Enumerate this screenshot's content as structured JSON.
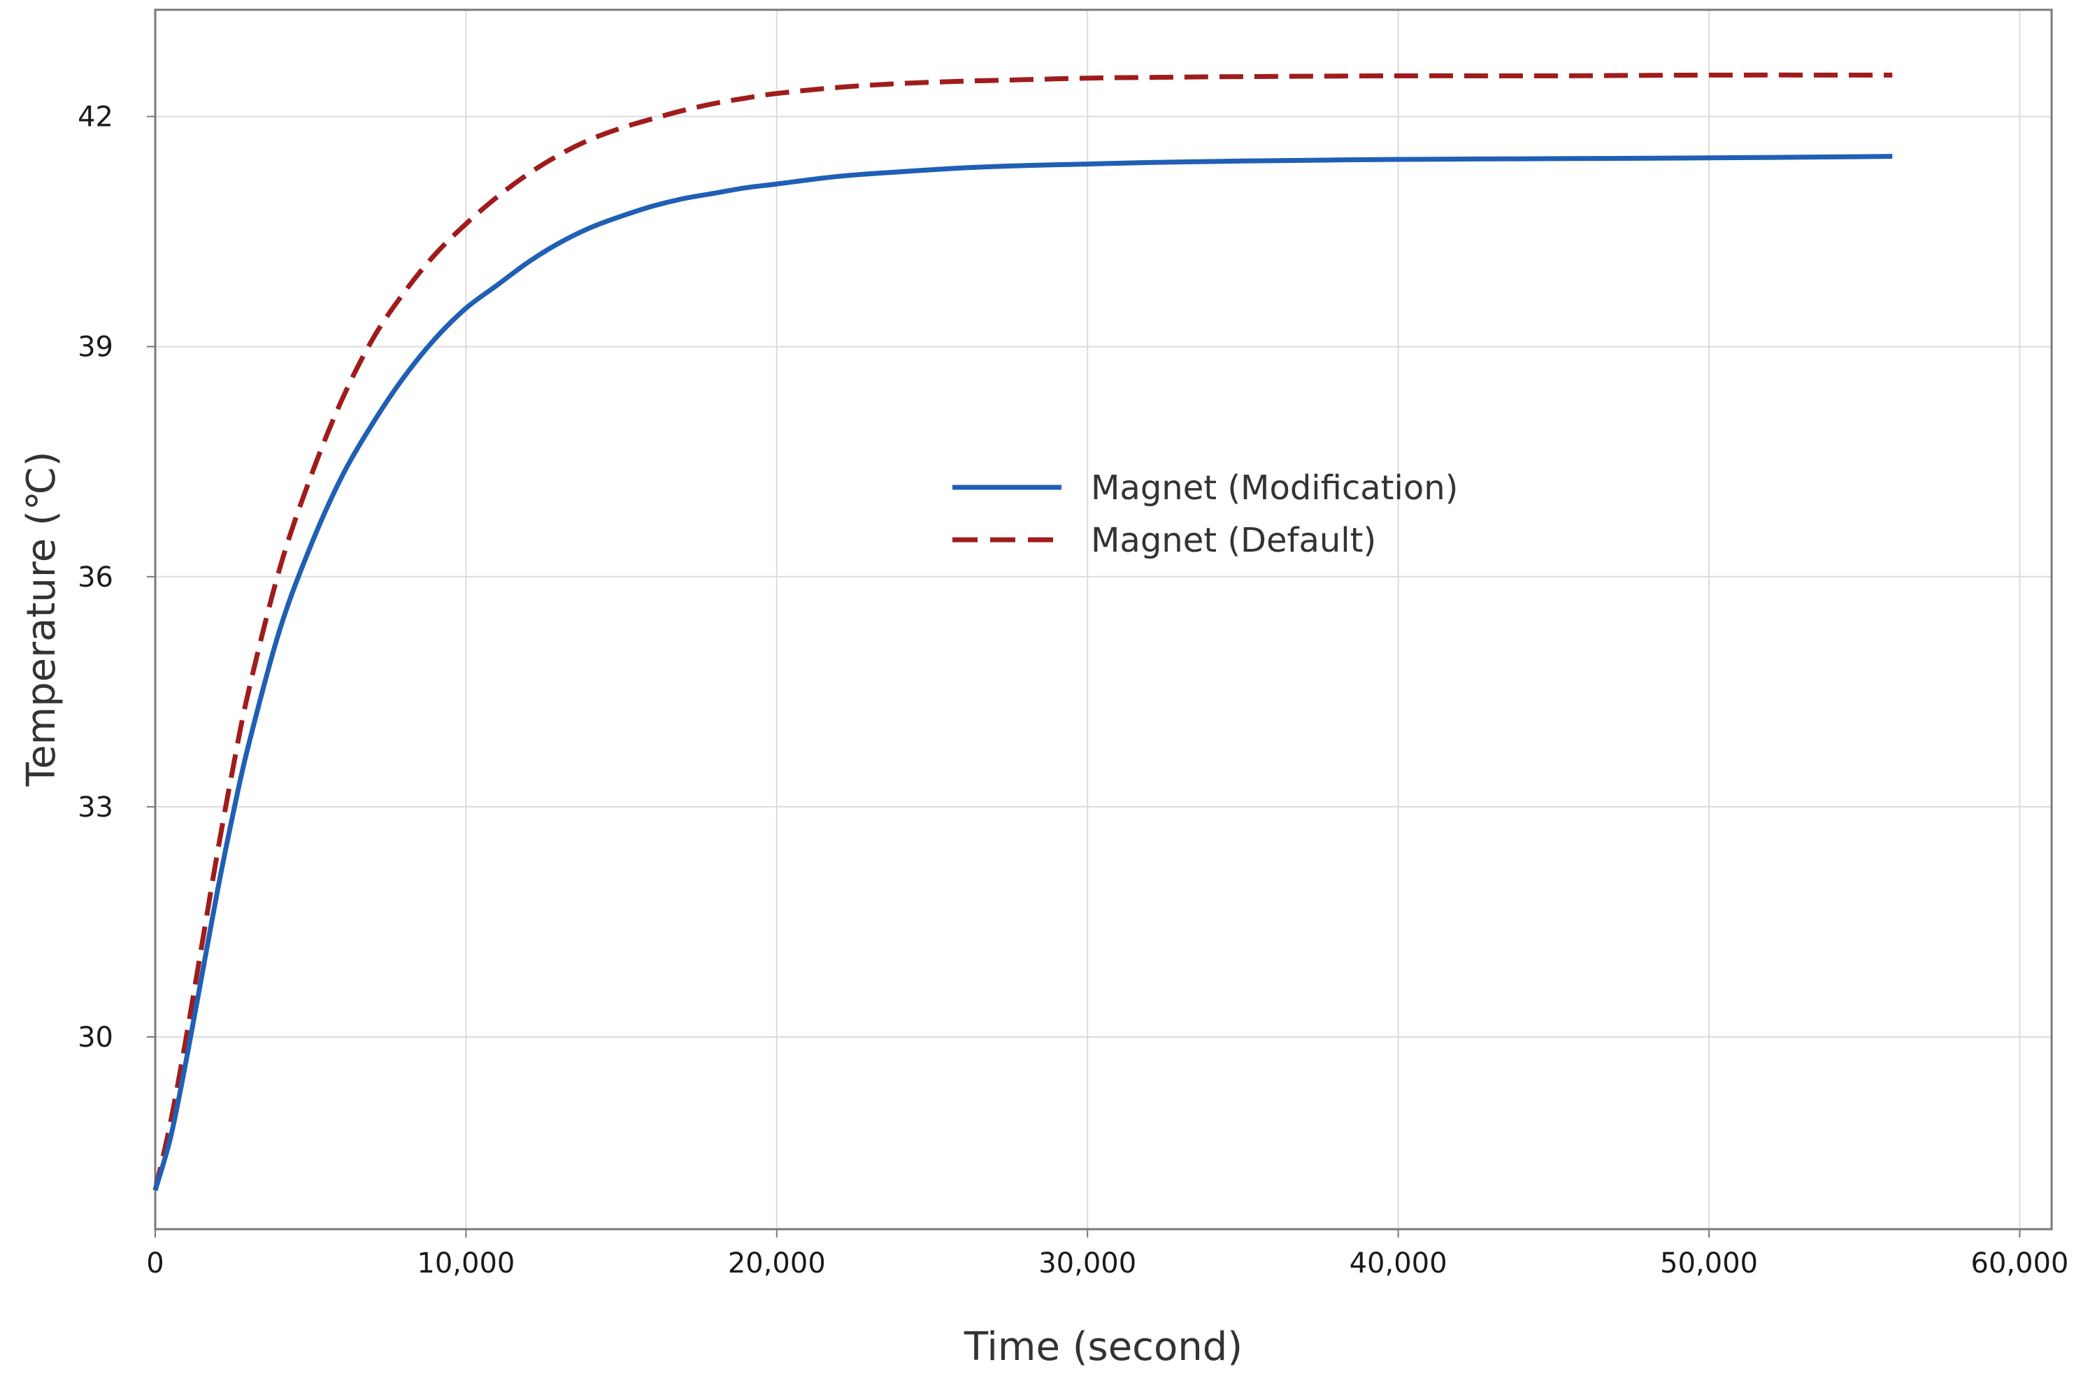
{
  "chart_data": {
    "type": "line",
    "title": "",
    "xlabel": "Time (second)",
    "ylabel": "Temperature (℃)",
    "xlim": [
      0,
      61000
    ],
    "ylim": [
      26.5,
      43.8
    ],
    "xticks": [
      0,
      10000,
      20000,
      30000,
      40000,
      50000,
      60000
    ],
    "xtick_labels": [
      "0",
      "10,000",
      "20,000",
      "30,000",
      "40,000",
      "50,000",
      "60,000"
    ],
    "yticks": [
      30,
      33,
      36,
      39,
      42
    ],
    "ytick_labels": [
      "30",
      "33",
      "36",
      "39",
      "42"
    ],
    "grid": true,
    "legend_position": "center-right",
    "series": [
      {
        "name": "Magnet (Modification)",
        "color": "#1f5fb4",
        "style": "solid",
        "x": [
          0,
          500,
          1000,
          1500,
          2000,
          2500,
          3000,
          4000,
          5000,
          6000,
          7000,
          8000,
          9000,
          10000,
          11000,
          12000,
          13000,
          14000,
          15000,
          16000,
          17000,
          18000,
          19000,
          20000,
          22000,
          24000,
          26000,
          28000,
          30000,
          32000,
          35000,
          40000,
          45000,
          50000,
          55900
        ],
        "y": [
          28.0,
          28.7,
          29.7,
          30.8,
          31.9,
          32.9,
          33.8,
          35.3,
          36.4,
          37.3,
          38.0,
          38.6,
          39.1,
          39.5,
          39.8,
          40.1,
          40.35,
          40.55,
          40.7,
          40.83,
          40.93,
          41.0,
          41.07,
          41.12,
          41.22,
          41.28,
          41.33,
          41.36,
          41.38,
          41.4,
          41.42,
          41.44,
          41.45,
          41.46,
          41.48
        ]
      },
      {
        "name": "Magnet (Default)",
        "color": "#a01c1c",
        "style": "dashed",
        "x": [
          0,
          500,
          1000,
          1500,
          2000,
          2500,
          3000,
          4000,
          5000,
          6000,
          7000,
          8000,
          9000,
          10000,
          11000,
          12000,
          13000,
          14000,
          15000,
          16000,
          17000,
          18000,
          19000,
          20000,
          22000,
          24000,
          26000,
          28000,
          30000,
          32000,
          35000,
          40000,
          45000,
          50000,
          55900
        ],
        "y": [
          28.0,
          28.9,
          30.0,
          31.2,
          32.4,
          33.5,
          34.5,
          36.1,
          37.3,
          38.3,
          39.1,
          39.7,
          40.2,
          40.6,
          40.95,
          41.25,
          41.5,
          41.7,
          41.85,
          41.97,
          42.08,
          42.17,
          42.24,
          42.3,
          42.38,
          42.43,
          42.46,
          42.48,
          42.5,
          42.51,
          42.52,
          42.53,
          42.53,
          42.54,
          42.54
        ]
      }
    ]
  }
}
